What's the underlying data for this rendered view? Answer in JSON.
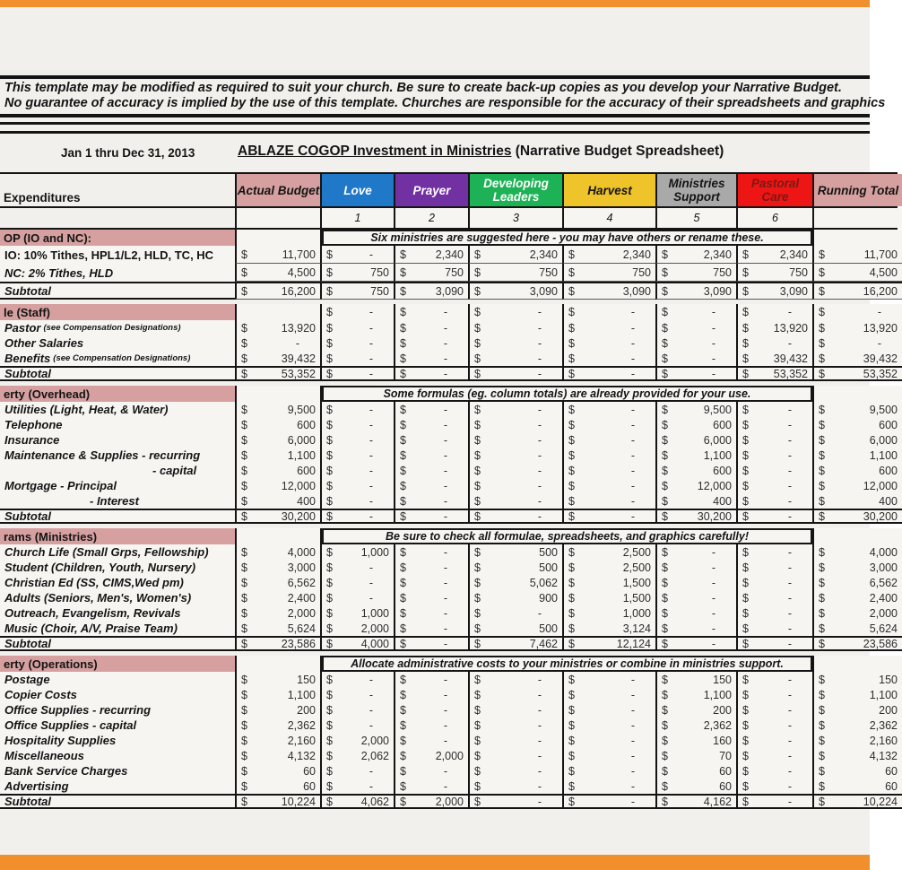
{
  "page": {
    "disclaimer_line1": "This template may be modified as required to suit your church.  Be sure to create back-up copies as you develop your Narrative Budget.",
    "disclaimer_line2": "No guarantee of accuracy is implied by the use of this template.  Churches are responsible for the accuracy of their spreadsheets and graphics",
    "date_range": "Jan 1 thru Dec 31, 2013",
    "title_underlined": "ABLAZE COGOP  Investment in Ministries",
    "title_suffix": " (Narrative Budget Spreadsheet)"
  },
  "colors": {
    "accent_orange": "#f08f2c",
    "header_pink": "#d6a0a0",
    "love_blue": "#1f78c8",
    "prayer_purple": "#7231a3",
    "developing_green": "#1eb256",
    "harvest_gold": "#efc32a",
    "support_gray": "#a9a9a9",
    "pastoral_red": "#ee1515",
    "pastoral_text": "#7a1a15"
  },
  "table": {
    "expenditures_header": "Expenditures",
    "columns": [
      {
        "key": "actual",
        "label": "Actual Budget",
        "bg": "#d6a0a0",
        "fg": "#141414",
        "num": ""
      },
      {
        "key": "love",
        "label": "Love",
        "bg": "#1f78c8",
        "fg": "#ffffff",
        "num": "1"
      },
      {
        "key": "prayer",
        "label": "Prayer",
        "bg": "#7231a3",
        "fg": "#ffffff",
        "num": "2"
      },
      {
        "key": "devl",
        "label": "Developing Leaders",
        "bg": "#1eb256",
        "fg": "#ffffff",
        "num": "3"
      },
      {
        "key": "harvest",
        "label": "Harvest",
        "bg": "#efc32a",
        "fg": "#141414",
        "num": "4"
      },
      {
        "key": "minsup",
        "label": "Ministries Support",
        "bg": "#a9a9a9",
        "fg": "#141414",
        "num": "5"
      },
      {
        "key": "pastoral",
        "label": "Pastoral Care",
        "bg": "#ee1515",
        "fg": "#7a1a15",
        "num": "6"
      },
      {
        "key": "runtot",
        "label": "Running Total",
        "bg": "#d6a0a0",
        "fg": "#141414",
        "num": ""
      }
    ],
    "sections": [
      {
        "header": "OP (IO and NC):",
        "note": "Six ministries are suggested here - you may have others or rename these.",
        "row_lines": true,
        "rows": [
          {
            "label": "IO: 10% Tithes, HPL1/L2, HLD, TC, HC",
            "upright": true,
            "values": [
              "11,700",
              "-",
              "2,340",
              "2,340",
              "2,340",
              "2,340",
              "2,340",
              "11,700"
            ]
          },
          {
            "label": "NC: 2% Tithes, HLD",
            "values": [
              "4,500",
              "750",
              "750",
              "750",
              "750",
              "750",
              "750",
              "4,500"
            ]
          },
          {
            "label": "Subtotal",
            "subtotal": true,
            "values": [
              "16,200",
              "750",
              "3,090",
              "3,090",
              "3,090",
              "3,090",
              "3,090",
              "16,200"
            ]
          }
        ]
      },
      {
        "header": "le (Staff)",
        "header_values": [
          "",
          "-",
          "-",
          "-",
          "-",
          "-",
          "-",
          "-"
        ],
        "rows": [
          {
            "label": "Pastor",
            "label_small": "(see Compensation Designations)",
            "values": [
              "13,920",
              "-",
              "-",
              "-",
              "-",
              "-",
              "13,920",
              "13,920"
            ]
          },
          {
            "label": "Other Salaries",
            "values": [
              "-",
              "-",
              "-",
              "-",
              "-",
              "-",
              "-",
              "-"
            ]
          },
          {
            "label": "Benefits",
            "label_small": "(see Compensation Designations)",
            "values": [
              "39,432",
              "-",
              "-",
              "-",
              "-",
              "-",
              "39,432",
              "39,432"
            ]
          },
          {
            "label": "Subtotal",
            "subtotal": true,
            "values": [
              "53,352",
              "-",
              "-",
              "-",
              "-",
              "-",
              "53,352",
              "53,352"
            ]
          }
        ]
      },
      {
        "header": "erty (Overhead)",
        "note": "Some formulas (eg. column totals) are already provided for your use.",
        "rows": [
          {
            "label": "Utilities (Light, Heat, & Water)",
            "values": [
              "9,500",
              "-",
              "-",
              "-",
              "-",
              "9,500",
              "-",
              "9,500"
            ]
          },
          {
            "label": "Telephone",
            "values": [
              "600",
              "-",
              "-",
              "-",
              "-",
              "600",
              "-",
              "600"
            ]
          },
          {
            "label": "Insurance",
            "values": [
              "6,000",
              "-",
              "-",
              "-",
              "-",
              "6,000",
              "-",
              "6,000"
            ]
          },
          {
            "label": "Maintenance & Supplies - recurring",
            "values": [
              "1,100",
              "-",
              "-",
              "-",
              "-",
              "1,100",
              "-",
              "1,100"
            ]
          },
          {
            "label": "- capital",
            "indent": 170,
            "values": [
              "600",
              "-",
              "-",
              "-",
              "-",
              "600",
              "-",
              "600"
            ]
          },
          {
            "label": "Mortgage  - Principal",
            "values": [
              "12,000",
              "-",
              "-",
              "-",
              "-",
              "12,000",
              "-",
              "12,000"
            ]
          },
          {
            "label": "- Interest",
            "indent": 100,
            "values": [
              "400",
              "-",
              "-",
              "-",
              "-",
              "400",
              "-",
              "400"
            ]
          },
          {
            "label": "Subtotal",
            "subtotal": true,
            "values": [
              "30,200",
              "-",
              "-",
              "-",
              "-",
              "30,200",
              "-",
              "30,200"
            ]
          }
        ]
      },
      {
        "header": "rams (Ministries)",
        "note": "Be sure to check all formulae, spreadsheets, and graphics carefully!",
        "rows": [
          {
            "label": "Church Life (Small Grps, Fellowship)",
            "values": [
              "4,000",
              "1,000",
              "-",
              "500",
              "2,500",
              "-",
              "-",
              "4,000"
            ]
          },
          {
            "label": "Student (Children, Youth, Nursery)",
            "values": [
              "3,000",
              "-",
              "-",
              "500",
              "2,500",
              "-",
              "-",
              "3,000"
            ]
          },
          {
            "label": "Christian Ed (SS, CIMS,Wed pm)",
            "values": [
              "6,562",
              "-",
              "-",
              "5,062",
              "1,500",
              "-",
              "-",
              "6,562"
            ]
          },
          {
            "label": "Adults (Seniors, Men's, Women's)",
            "values": [
              "2,400",
              "-",
              "-",
              "900",
              "1,500",
              "-",
              "-",
              "2,400"
            ]
          },
          {
            "label": "Outreach, Evangelism, Revivals",
            "values": [
              "2,000",
              "1,000",
              "-",
              "-",
              "1,000",
              "-",
              "-",
              "2,000"
            ]
          },
          {
            "label": "Music (Choir, A/V, Praise Team)",
            "values": [
              "5,624",
              "2,000",
              "-",
              "500",
              "3,124",
              "-",
              "-",
              "5,624"
            ]
          },
          {
            "label": "Subtotal",
            "subtotal": true,
            "values": [
              "23,586",
              "4,000",
              "-",
              "7,462",
              "12,124",
              "-",
              "-",
              "23,586"
            ]
          }
        ]
      },
      {
        "header": "erty (Operations)",
        "note": "Allocate administrative costs to your ministries or combine in ministries support.",
        "rows": [
          {
            "label": "Postage",
            "values": [
              "150",
              "-",
              "-",
              "-",
              "-",
              "150",
              "-",
              "150"
            ]
          },
          {
            "label": "Copier Costs",
            "values": [
              "1,100",
              "-",
              "-",
              "-",
              "-",
              "1,100",
              "-",
              "1,100"
            ]
          },
          {
            "label": "Office Supplies - recurring",
            "values": [
              "200",
              "-",
              "-",
              "-",
              "-",
              "200",
              "-",
              "200"
            ]
          },
          {
            "label": "Office Supplies - capital",
            "values": [
              "2,362",
              "-",
              "-",
              "-",
              "-",
              "2,362",
              "-",
              "2,362"
            ]
          },
          {
            "label": "Hospitality Supplies",
            "values": [
              "2,160",
              "2,000",
              "-",
              "-",
              "-",
              "160",
              "-",
              "2,160"
            ]
          },
          {
            "label": "Miscellaneous",
            "values": [
              "4,132",
              "2,062",
              "2,000",
              "-",
              "-",
              "70",
              "-",
              "4,132"
            ]
          },
          {
            "label": "Bank Service Charges",
            "values": [
              "60",
              "-",
              "-",
              "-",
              "-",
              "60",
              "-",
              "60"
            ]
          },
          {
            "label": "Advertising",
            "values": [
              "60",
              "-",
              "-",
              "-",
              "-",
              "60",
              "-",
              "60"
            ]
          },
          {
            "label": "Subtotal",
            "subtotal": true,
            "values": [
              "10,224",
              "4,062",
              "2,000",
              "-",
              "-",
              "4,162",
              "-",
              "10,224"
            ]
          }
        ]
      }
    ]
  }
}
